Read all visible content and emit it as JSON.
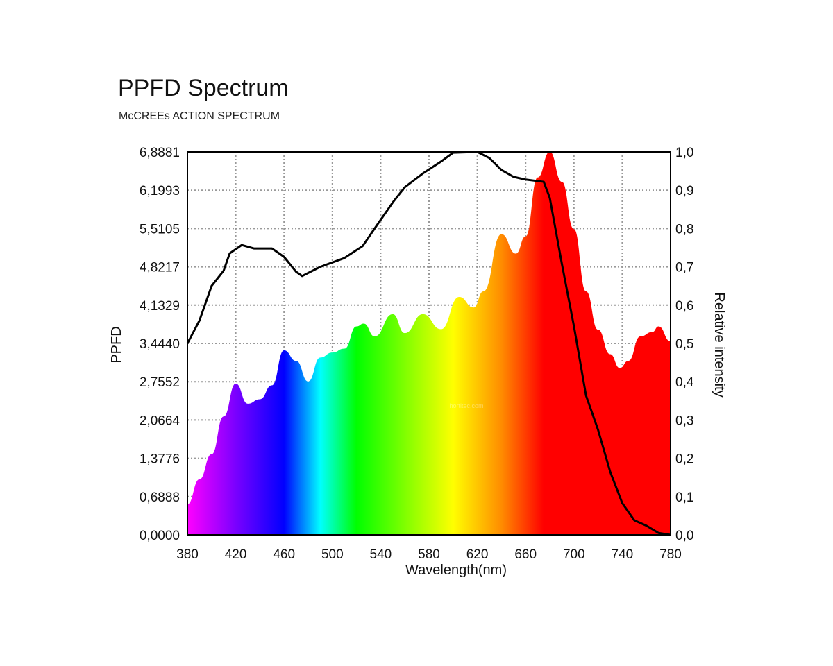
{
  "chart_data": {
    "type": "area",
    "title": "PPFD Spectrum",
    "subtitle": "McCREEs ACTION SPECTRUM",
    "xlabel": "Wavelength(nm)",
    "ylabel": "PPFD",
    "y2label": "Relative intensity",
    "xlim": [
      380,
      780
    ],
    "ylim": [
      0,
      6.8881
    ],
    "y2lim": [
      0,
      1
    ],
    "grid": true,
    "x_ticks": [
      "380",
      "420",
      "460",
      "500",
      "540",
      "580",
      "620",
      "660",
      "700",
      "740",
      "780"
    ],
    "y_ticks": [
      "0,0000",
      "0,6888",
      "1,3776",
      "2,0664",
      "2,7552",
      "3,4440",
      "4,1329",
      "4,8217",
      "5,5105",
      "6,1993",
      "6,8881"
    ],
    "y2_ticks": [
      "0,0",
      "0,1",
      "0,2",
      "0,3",
      "0,4",
      "0,5",
      "0,6",
      "0,7",
      "0,8",
      "0,9",
      "1,0"
    ],
    "series": [
      {
        "kind": "spectrum-fill",
        "axis": "left",
        "x": [
          380,
          390,
          400,
          410,
          420,
          430,
          440,
          450,
          460,
          470,
          480,
          490,
          500,
          510,
          520,
          526,
          535,
          550,
          560,
          575,
          590,
          605,
          617,
          625,
          640,
          652,
          660,
          670,
          680,
          690,
          700,
          710,
          720,
          730,
          738,
          745,
          755,
          765,
          770,
          780
        ],
        "y": [
          0.55,
          1.0,
          1.45,
          2.13,
          2.72,
          2.36,
          2.44,
          2.69,
          3.32,
          3.13,
          2.76,
          3.19,
          3.28,
          3.35,
          3.75,
          3.8,
          3.57,
          3.97,
          3.63,
          3.97,
          3.7,
          4.28,
          4.09,
          4.38,
          5.41,
          5.06,
          5.37,
          6.43,
          6.89,
          6.35,
          5.5,
          4.38,
          3.69,
          3.25,
          3.0,
          3.13,
          3.57,
          3.65,
          3.75,
          3.48
        ]
      },
      {
        "kind": "line",
        "axis": "right",
        "color": "#000000",
        "x": [
          380,
          390,
          400,
          410,
          415,
          425,
          435,
          450,
          460,
          470,
          475,
          490,
          510,
          525,
          535,
          550,
          560,
          575,
          590,
          600,
          620,
          630,
          640,
          650,
          660,
          675,
          680,
          690,
          700,
          710,
          720,
          730,
          740,
          750,
          760,
          770,
          780
        ],
        "y": [
          0.5,
          0.56,
          0.65,
          0.69,
          0.735,
          0.757,
          0.748,
          0.748,
          0.726,
          0.687,
          0.676,
          0.7,
          0.723,
          0.754,
          0.8,
          0.868,
          0.908,
          0.944,
          0.975,
          0.998,
          1.0,
          0.984,
          0.953,
          0.935,
          0.928,
          0.922,
          0.88,
          0.708,
          0.545,
          0.364,
          0.274,
          0.165,
          0.083,
          0.038,
          0.024,
          0.005,
          0.0
        ]
      }
    ],
    "spectrum_colors": [
      {
        "nm": 380,
        "color": "#ff00ff"
      },
      {
        "nm": 420,
        "color": "#7a00ff"
      },
      {
        "nm": 460,
        "color": "#0000ff"
      },
      {
        "nm": 490,
        "color": "#00ffff"
      },
      {
        "nm": 520,
        "color": "#00ff00"
      },
      {
        "nm": 600,
        "color": "#ffff00"
      },
      {
        "nm": 640,
        "color": "#ff8c00"
      },
      {
        "nm": 675,
        "color": "#ff0000"
      },
      {
        "nm": 780,
        "color": "#ff0000"
      }
    ],
    "watermark": "hortitec.com"
  }
}
